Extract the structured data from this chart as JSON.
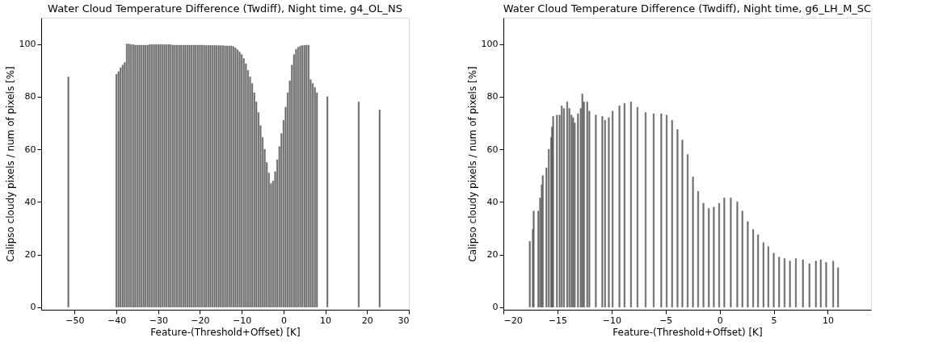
{
  "chart_data": [
    {
      "type": "bar",
      "title": "Water Cloud Temperature Difference (Twdiff), Night time, g4_OL_NS",
      "xlabel": "Feature-(Threshold+Offset) [K]",
      "ylabel": "Calipso cloudy pixels / num of pixels [%]",
      "xlim": [
        -58,
        30
      ],
      "xticks": [
        -50,
        -40,
        -30,
        -20,
        -10,
        0,
        10,
        20,
        30
      ],
      "ylim": [
        -1,
        110
      ],
      "yticks": [
        0,
        20,
        40,
        60,
        80,
        100
      ],
      "grid": false,
      "series": [
        {
          "color": "#777777",
          "x": [
            -51.5,
            -40,
            -39.5,
            -39,
            -38.5,
            -38,
            -37.5,
            -37,
            -36.5,
            -36,
            -35.5,
            -35,
            -34.5,
            -34,
            -33.5,
            -33,
            -32.5,
            -32,
            -31.5,
            -31,
            -30.5,
            -30,
            -29.5,
            -29,
            -28.5,
            -28,
            -27.5,
            -27,
            -26.5,
            -26,
            -25.5,
            -25,
            -24.5,
            -24,
            -23.5,
            -23,
            -22.5,
            -22,
            -21.5,
            -21,
            -20.5,
            -20,
            -19.5,
            -19,
            -18.5,
            -18,
            -17.5,
            -17,
            -16.5,
            -16,
            -15.5,
            -15,
            -14.5,
            -14,
            -13.5,
            -13,
            -12.5,
            -12,
            -11.5,
            -11,
            -10.5,
            -10,
            -9.5,
            -9,
            -8.5,
            -8,
            -7.5,
            -7,
            -6.5,
            -6,
            -5.5,
            -5,
            -4.5,
            -4,
            -3.5,
            -3,
            -2.5,
            -2,
            -1.5,
            -1,
            -0.5,
            0,
            0.5,
            1,
            1.5,
            2,
            2.5,
            3,
            3.5,
            4,
            4.5,
            5,
            5.5,
            6,
            6.5,
            7,
            7.5,
            8,
            10.5,
            18,
            23
          ],
          "values": [
            87.5,
            88.5,
            89.5,
            91,
            92,
            93,
            100,
            100,
            99.8,
            99.8,
            99.6,
            99.6,
            99.6,
            99.6,
            99.6,
            99.6,
            99.6,
            99.8,
            99.8,
            99.8,
            99.8,
            99.8,
            99.8,
            99.8,
            99.8,
            99.8,
            99.8,
            99.8,
            99.6,
            99.6,
            99.6,
            99.6,
            99.6,
            99.6,
            99.6,
            99.6,
            99.6,
            99.6,
            99.6,
            99.6,
            99.6,
            99.6,
            99.6,
            99.5,
            99.5,
            99.5,
            99.5,
            99.5,
            99.5,
            99.5,
            99.4,
            99.4,
            99.4,
            99.3,
            99.3,
            99.3,
            99.3,
            99,
            98.5,
            97.8,
            97,
            96,
            94.5,
            92.5,
            90,
            87.5,
            85,
            81.5,
            78,
            74,
            69,
            64.5,
            60,
            55,
            51,
            47,
            48,
            51.5,
            56,
            61,
            66,
            71,
            76,
            81.5,
            86,
            92,
            96,
            98,
            98.8,
            99.2,
            99.4,
            99.5,
            99.6,
            99.6,
            86.5,
            85,
            83.5,
            81.5,
            80,
            78,
            75
          ]
        }
      ]
    },
    {
      "type": "bar",
      "title": "Water Cloud Temperature Difference (Twdiff), Night time, g6_LH_M_SC",
      "xlabel": "Feature-(Threshold+Offset) [K]",
      "ylabel": "Calipso cloudy pixels / num of pixels [%]",
      "xlim": [
        -20,
        14
      ],
      "xticks": [
        -20,
        -15,
        -10,
        -5,
        0,
        5,
        10
      ],
      "ylim": [
        -1,
        110
      ],
      "yticks": [
        0,
        20,
        40,
        60,
        80,
        100
      ],
      "grid": false,
      "series": [
        {
          "color": "#777777",
          "x": [
            -17.56,
            -17.27,
            -17.2,
            -16.77,
            -16.6,
            -16.45,
            -16.36,
            -16.02,
            -15.8,
            -15.58,
            -15.5,
            -15.4,
            -15.05,
            -14.8,
            -14.6,
            -14.4,
            -14.1,
            -13.9,
            -13.7,
            -13.55,
            -13.4,
            -13.1,
            -12.85,
            -12.7,
            -12.55,
            -12.25,
            -12.05,
            -11.45,
            -10.85,
            -10.6,
            -10.25,
            -9.9,
            -9.27,
            -8.8,
            -8.2,
            -7.6,
            -6.85,
            -6.1,
            -5.4,
            -4.9,
            -4.4,
            -3.9,
            -3.45,
            -2.96,
            -2.47,
            -1.99,
            -1.5,
            -1.0,
            -0.54,
            -0.05,
            0.43,
            1.03,
            1.63,
            2.1,
            2.6,
            3.1,
            3.55,
            4.05,
            4.5,
            5.0,
            5.5,
            6.0,
            6.5,
            7.05,
            7.7,
            8.3,
            8.9,
            9.35,
            9.85,
            10.5,
            10.95
          ],
          "values": [
            25,
            29.5,
            36.5,
            36.5,
            41.5,
            46.5,
            50,
            53,
            60,
            64.5,
            68.5,
            72.5,
            73,
            73,
            76.5,
            75.5,
            78,
            75.5,
            73,
            72,
            70,
            73.5,
            75.5,
            81,
            78,
            78,
            74.5,
            73,
            72.5,
            71,
            72,
            74.5,
            76.5,
            77.5,
            78,
            76,
            74,
            73.5,
            73.5,
            73,
            71,
            67.5,
            63.5,
            58,
            49.5,
            44,
            39.5,
            37.5,
            38,
            39.5,
            41.5,
            41.5,
            40,
            36.5,
            32.5,
            29.5,
            27.5,
            24.5,
            23,
            20.5,
            19,
            18.5,
            17.5,
            18.5,
            18,
            16.5,
            17.5,
            18,
            17,
            17.5,
            15
          ]
        }
      ]
    }
  ]
}
